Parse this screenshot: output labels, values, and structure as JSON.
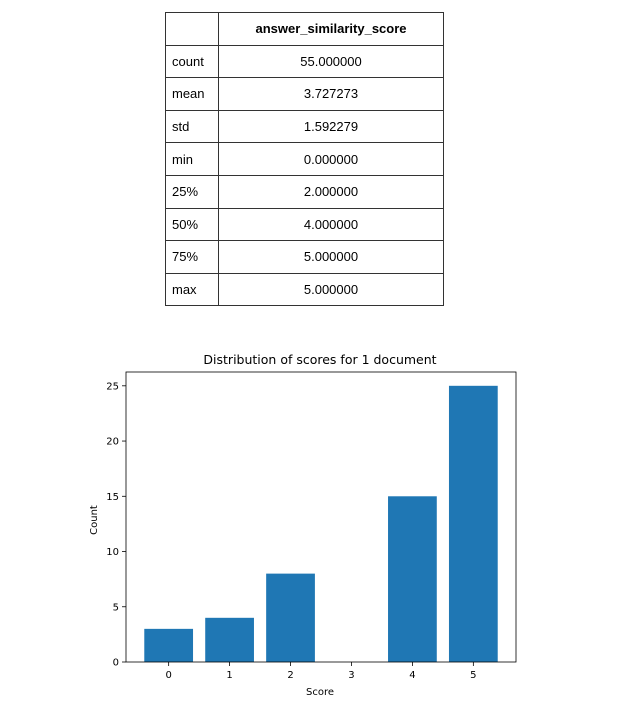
{
  "table": {
    "column_header": "answer_similarity_score",
    "rows": [
      {
        "stat": "count",
        "value": "55.000000"
      },
      {
        "stat": "mean",
        "value": "3.727273"
      },
      {
        "stat": "std",
        "value": "1.592279"
      },
      {
        "stat": "min",
        "value": "0.000000"
      },
      {
        "stat": "25%",
        "value": "2.000000"
      },
      {
        "stat": "50%",
        "value": "4.000000"
      },
      {
        "stat": "75%",
        "value": "5.000000"
      },
      {
        "stat": "max",
        "value": "5.000000"
      }
    ]
  },
  "chart_data": {
    "type": "bar",
    "title": "Distribution of scores for 1 document",
    "xlabel": "Score",
    "ylabel": "Count",
    "categories": [
      "0",
      "1",
      "2",
      "3",
      "4",
      "5"
    ],
    "values": [
      3,
      4,
      8,
      0,
      15,
      25
    ],
    "ylim": [
      0,
      26.25
    ],
    "yticks": [
      "0",
      "5",
      "10",
      "15",
      "20",
      "25"
    ],
    "bar_color": "#1f77b4",
    "grid": false,
    "legend": false
  }
}
